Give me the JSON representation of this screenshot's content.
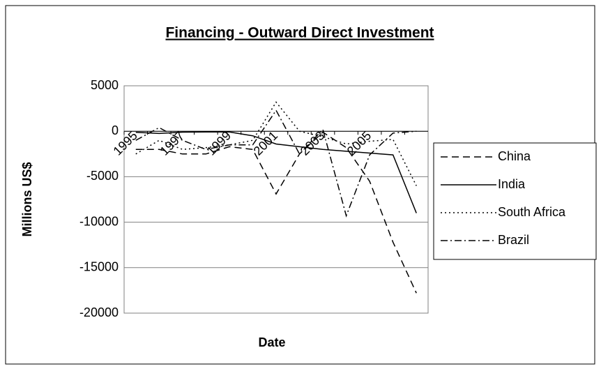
{
  "chart_data": {
    "type": "line",
    "title": "Financing - Outward Direct Investment",
    "x_label": "Date",
    "y_label": "Millions US$",
    "categories": [
      "1995",
      null,
      "1997",
      null,
      "1999",
      null,
      "2001",
      null,
      "2003",
      null,
      "2005",
      null,
      null
    ],
    "series": [
      {
        "name": "China",
        "color": "#000000",
        "dash": "10,6",
        "values": [
          -2000,
          -2000,
          -2500,
          -2500,
          -1700,
          -2000,
          -6900,
          -2500,
          -100,
          -1800,
          -5500,
          -12200,
          -17800
        ]
      },
      {
        "name": "India",
        "color": "#000000",
        "dash": "none",
        "values": [
          -120,
          -240,
          -100,
          -80,
          -80,
          -500,
          -1400,
          -1700,
          -2000,
          -2200,
          -2400,
          -2600,
          -9000
        ]
      },
      {
        "name": "South Africa",
        "color": "#000000",
        "dash": "2,4",
        "values": [
          -2500,
          -1000,
          -2000,
          -1800,
          -1500,
          -1000,
          3200,
          0,
          -600,
          -1400,
          -1100,
          -900,
          -6000
        ]
      },
      {
        "name": "Brazil",
        "color": "#000000",
        "dash": "10,4,2,4",
        "values": [
          -1000,
          400,
          -1000,
          -2000,
          -1500,
          -1500,
          2300,
          -2500,
          200,
          -9300,
          -2600,
          -200,
          0
        ]
      }
    ],
    "ylim": [
      -20000,
      5000
    ],
    "yticks": [
      -20000,
      -15000,
      -10000,
      -5000,
      0,
      5000
    ],
    "grid": true,
    "legend": "right"
  }
}
